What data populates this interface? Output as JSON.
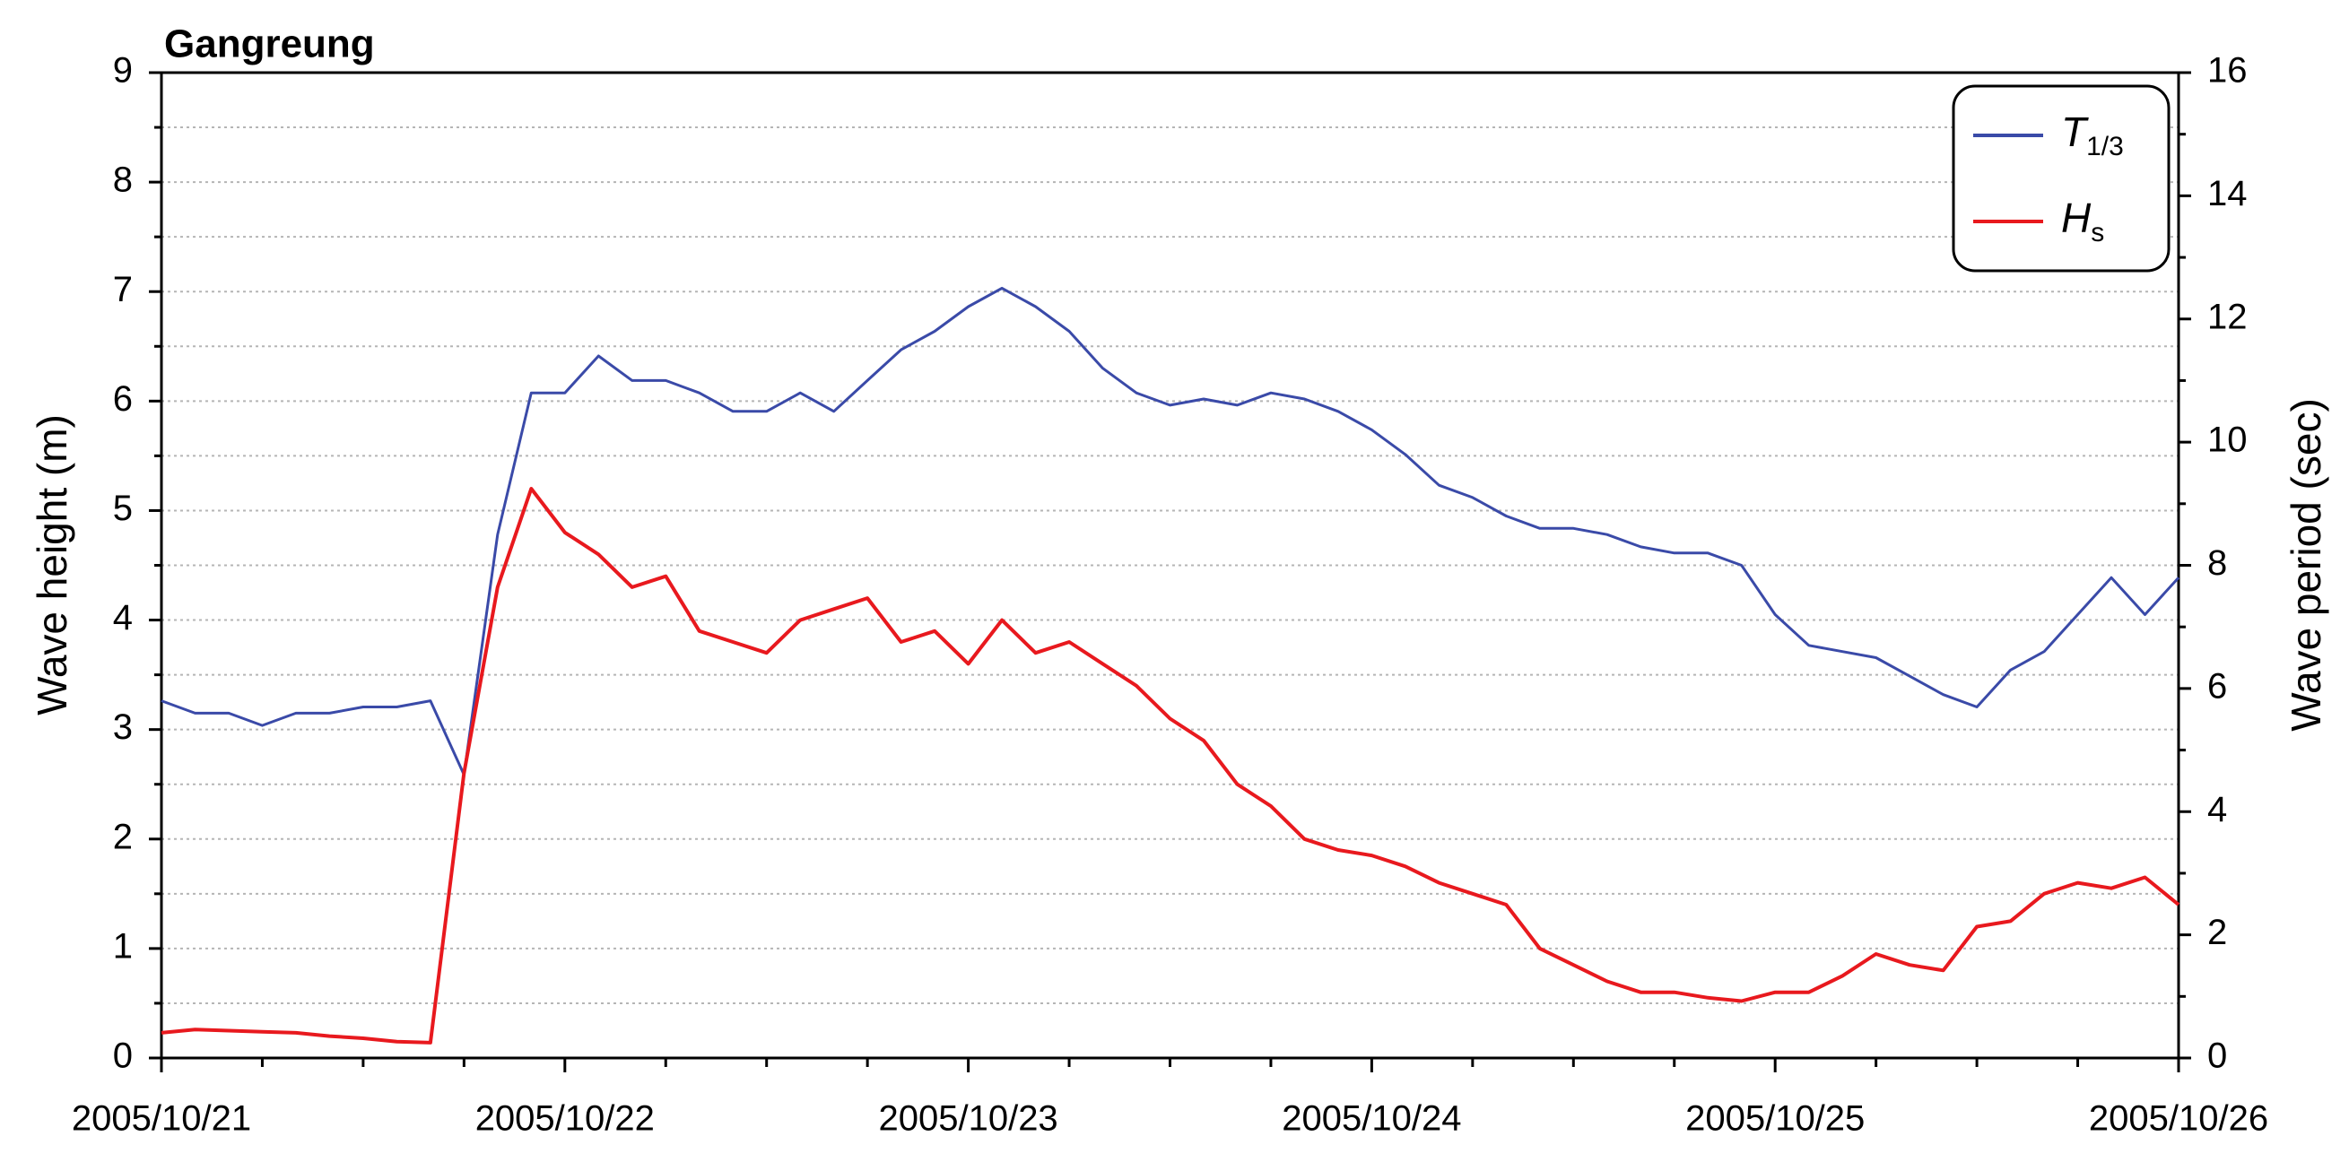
{
  "chart_data": {
    "type": "line",
    "title": "Gangreung",
    "y_label": "Wave height (m)",
    "y2_label": "Wave period (sec)",
    "x": [
      0,
      2,
      4,
      6,
      8,
      10,
      12,
      14,
      16,
      18,
      20,
      22,
      24,
      26,
      28,
      30,
      32,
      34,
      36,
      38,
      40,
      42,
      44,
      46,
      48,
      50,
      52,
      54,
      56,
      58,
      60,
      62,
      64,
      66,
      68,
      70,
      72,
      74,
      76,
      78,
      80,
      82,
      84,
      86,
      88,
      90,
      92,
      94,
      96,
      98,
      100,
      102,
      104,
      106,
      108,
      110,
      112,
      114,
      116,
      118,
      120
    ],
    "xlim": [
      0,
      120
    ],
    "xticks": [
      {
        "value": 0,
        "label": "2005/10/21"
      },
      {
        "value": 24,
        "label": "2005/10/22"
      },
      {
        "value": 48,
        "label": "2005/10/23"
      },
      {
        "value": 72,
        "label": "2005/10/24"
      },
      {
        "value": 96,
        "label": "2005/10/25"
      },
      {
        "value": 120,
        "label": "2005/10/26"
      }
    ],
    "xminorticks": [
      6,
      12,
      18,
      30,
      36,
      42,
      54,
      60,
      66,
      78,
      84,
      90,
      102,
      108,
      114
    ],
    "ylim": [
      0,
      9
    ],
    "yticks": [
      0,
      1,
      2,
      3,
      4,
      5,
      6,
      7,
      8,
      9
    ],
    "yminorticks": [
      0.5,
      1.5,
      2.5,
      3.5,
      4.5,
      5.5,
      6.5,
      7.5,
      8.5
    ],
    "y2lim": [
      0,
      16
    ],
    "y2ticks": [
      0,
      2,
      4,
      6,
      8,
      10,
      12,
      14,
      16
    ],
    "y2minorticks": [
      1,
      3,
      5,
      7,
      9,
      11,
      13,
      15
    ],
    "grid": true,
    "legend": "upper right",
    "series": [
      {
        "name": "T1/3",
        "color": "#3a4aa8",
        "axis": "y2",
        "values": [
          5.8,
          5.6,
          5.6,
          5.4,
          5.6,
          5.6,
          5.7,
          5.7,
          5.8,
          4.6,
          8.5,
          10.8,
          10.8,
          11.4,
          11.0,
          11.0,
          10.8,
          10.5,
          10.5,
          10.8,
          10.5,
          11.0,
          11.5,
          11.8,
          12.2,
          12.5,
          12.2,
          11.8,
          11.2,
          10.8,
          10.6,
          10.7,
          10.6,
          10.8,
          10.7,
          10.5,
          10.2,
          9.8,
          9.3,
          9.1,
          8.8,
          8.6,
          8.6,
          8.5,
          8.3,
          8.2,
          8.2,
          8.0,
          7.2,
          6.7,
          6.6,
          6.5,
          6.2,
          5.9,
          5.7,
          6.3,
          6.6,
          7.2,
          7.8,
          7.2,
          7.8
        ]
      },
      {
        "name": "Hs",
        "color": "#e8191e",
        "values": [
          0.23,
          0.26,
          0.25,
          0.24,
          0.23,
          0.2,
          0.18,
          0.15,
          0.14,
          2.6,
          4.3,
          5.2,
          4.8,
          4.6,
          4.3,
          4.4,
          3.9,
          3.8,
          3.7,
          4.0,
          4.1,
          4.2,
          3.8,
          3.9,
          3.6,
          4.0,
          3.7,
          3.8,
          3.6,
          3.4,
          3.1,
          2.9,
          2.5,
          2.3,
          2.0,
          1.9,
          1.85,
          1.75,
          1.6,
          1.5,
          1.4,
          1.0,
          0.85,
          0.7,
          0.6,
          0.6,
          0.55,
          0.52,
          0.6,
          0.6,
          0.75,
          0.95,
          0.85,
          0.8,
          1.2,
          1.25,
          1.5,
          1.6,
          1.55,
          1.65,
          1.4
        ]
      }
    ]
  }
}
